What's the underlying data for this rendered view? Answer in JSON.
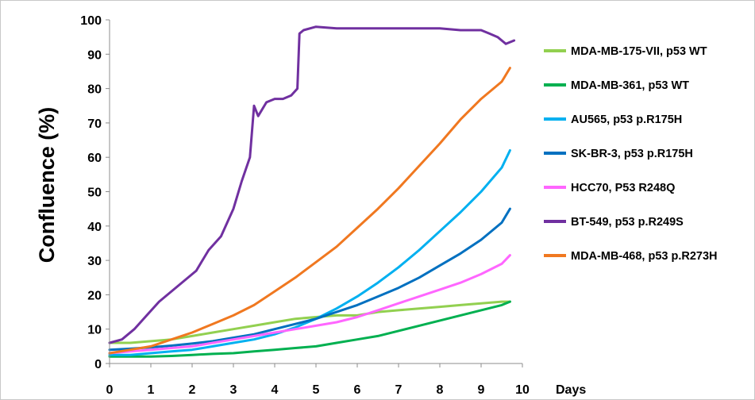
{
  "chart_data": {
    "type": "line",
    "title": "",
    "xlabel": "Days",
    "ylabel": "Confluence (%)",
    "xlim": [
      0,
      10
    ],
    "ylim": [
      0,
      100
    ],
    "x_ticks": [
      "0",
      "1",
      "2",
      "3",
      "4",
      "5",
      "6",
      "7",
      "8",
      "9",
      "10"
    ],
    "y_ticks": [
      "0",
      "10",
      "20",
      "30",
      "40",
      "50",
      "60",
      "70",
      "80",
      "90",
      "100"
    ],
    "grid": false,
    "legend_position": "right",
    "series": [
      {
        "name": "MDA-MB-175-VII, p53 WT",
        "color": "#92d050",
        "x": [
          0,
          0.5,
          1,
          1.5,
          2,
          2.5,
          3,
          3.5,
          4,
          4.5,
          5,
          5.5,
          6,
          6.5,
          7,
          7.5,
          8,
          8.5,
          9,
          9.5,
          9.7
        ],
        "y": [
          6,
          6,
          6.5,
          7,
          8,
          9,
          10,
          11,
          12,
          13,
          13.5,
          14,
          14,
          15,
          15.5,
          16,
          16.5,
          17,
          17.5,
          18,
          18
        ]
      },
      {
        "name": "MDA-MB-361, p53 WT",
        "color": "#00b050",
        "x": [
          0,
          0.5,
          1,
          1.5,
          2,
          2.5,
          3,
          3.5,
          4,
          4.5,
          5,
          5.5,
          6,
          6.5,
          7,
          7.5,
          8,
          8.5,
          9,
          9.5,
          9.7
        ],
        "y": [
          2,
          2,
          2,
          2.2,
          2.5,
          2.8,
          3,
          3.5,
          4,
          4.5,
          5,
          6,
          7,
          8,
          9.5,
          11,
          12.5,
          14,
          15.5,
          17,
          18
        ]
      },
      {
        "name": "AU565, p53 p.R175H",
        "color": "#00b0f0",
        "x": [
          0,
          0.5,
          1,
          1.5,
          2,
          2.5,
          3,
          3.5,
          4,
          4.5,
          5,
          5.5,
          6,
          6.5,
          7,
          7.5,
          8,
          8.5,
          9,
          9.5,
          9.7
        ],
        "y": [
          2.5,
          2.5,
          3,
          3.5,
          4,
          5,
          6,
          7,
          8.5,
          10.5,
          13,
          16,
          19.5,
          23.5,
          28,
          33,
          38.5,
          44,
          50,
          57,
          62
        ]
      },
      {
        "name": "SK-BR-3, p53 p.R175H",
        "color": "#0070c0",
        "x": [
          0,
          0.5,
          1,
          1.5,
          2,
          2.5,
          3,
          3.5,
          4,
          4.5,
          5,
          5.5,
          6,
          6.5,
          7,
          7.5,
          8,
          8.5,
          9,
          9.5,
          9.7
        ],
        "y": [
          4,
          4.3,
          4.7,
          5.2,
          5.8,
          6.5,
          7.5,
          8.5,
          10,
          11.5,
          13,
          15,
          17,
          19.5,
          22,
          25,
          28.5,
          32,
          36,
          41,
          45
        ]
      },
      {
        "name": "HCC70, P53 R248Q",
        "color": "#ff66ff",
        "x": [
          0,
          0.5,
          1,
          1.5,
          2,
          2.5,
          3,
          3.5,
          4,
          4.5,
          5,
          5.5,
          6,
          6.5,
          7,
          7.5,
          8,
          8.5,
          9,
          9.5,
          9.7
        ],
        "y": [
          3,
          3.5,
          4,
          4.5,
          5,
          6,
          7,
          8,
          9,
          10,
          11,
          12,
          13.5,
          15.5,
          17.5,
          19.5,
          21.5,
          23.5,
          26,
          29,
          31.5
        ]
      },
      {
        "name": "BT-549, p53 p.R249S",
        "color": "#7030a0",
        "x": [
          0,
          0.3,
          0.6,
          0.9,
          1.2,
          1.5,
          1.8,
          2.1,
          2.4,
          2.7,
          3.0,
          3.2,
          3.4,
          3.5,
          3.6,
          3.8,
          4.0,
          4.2,
          4.4,
          4.55,
          4.6,
          4.7,
          5.0,
          5.5,
          6,
          6.5,
          7,
          7.5,
          8,
          8.5,
          9,
          9.2,
          9.4,
          9.6,
          9.8
        ],
        "y": [
          6,
          7,
          10,
          14,
          18,
          21,
          24,
          27,
          33,
          37,
          45,
          53,
          60,
          75,
          72,
          76,
          77,
          77,
          78,
          80,
          96,
          97,
          98,
          97.5,
          97.5,
          97.5,
          97.5,
          97.5,
          97.5,
          97,
          97,
          96,
          95,
          93,
          94
        ]
      },
      {
        "name": "MDA-MB-468, p53 p.R273H",
        "color": "#f07820",
        "x": [
          0,
          0.5,
          1,
          1.5,
          2,
          2.5,
          3,
          3.5,
          4,
          4.5,
          5,
          5.5,
          6,
          6.5,
          7,
          7.5,
          8,
          8.5,
          9,
          9.5,
          9.7
        ],
        "y": [
          3,
          4,
          5,
          7,
          9,
          11.5,
          14,
          17,
          21,
          25,
          29.5,
          34,
          39.5,
          45,
          51,
          57.5,
          64,
          71,
          77,
          82,
          86
        ]
      }
    ]
  }
}
